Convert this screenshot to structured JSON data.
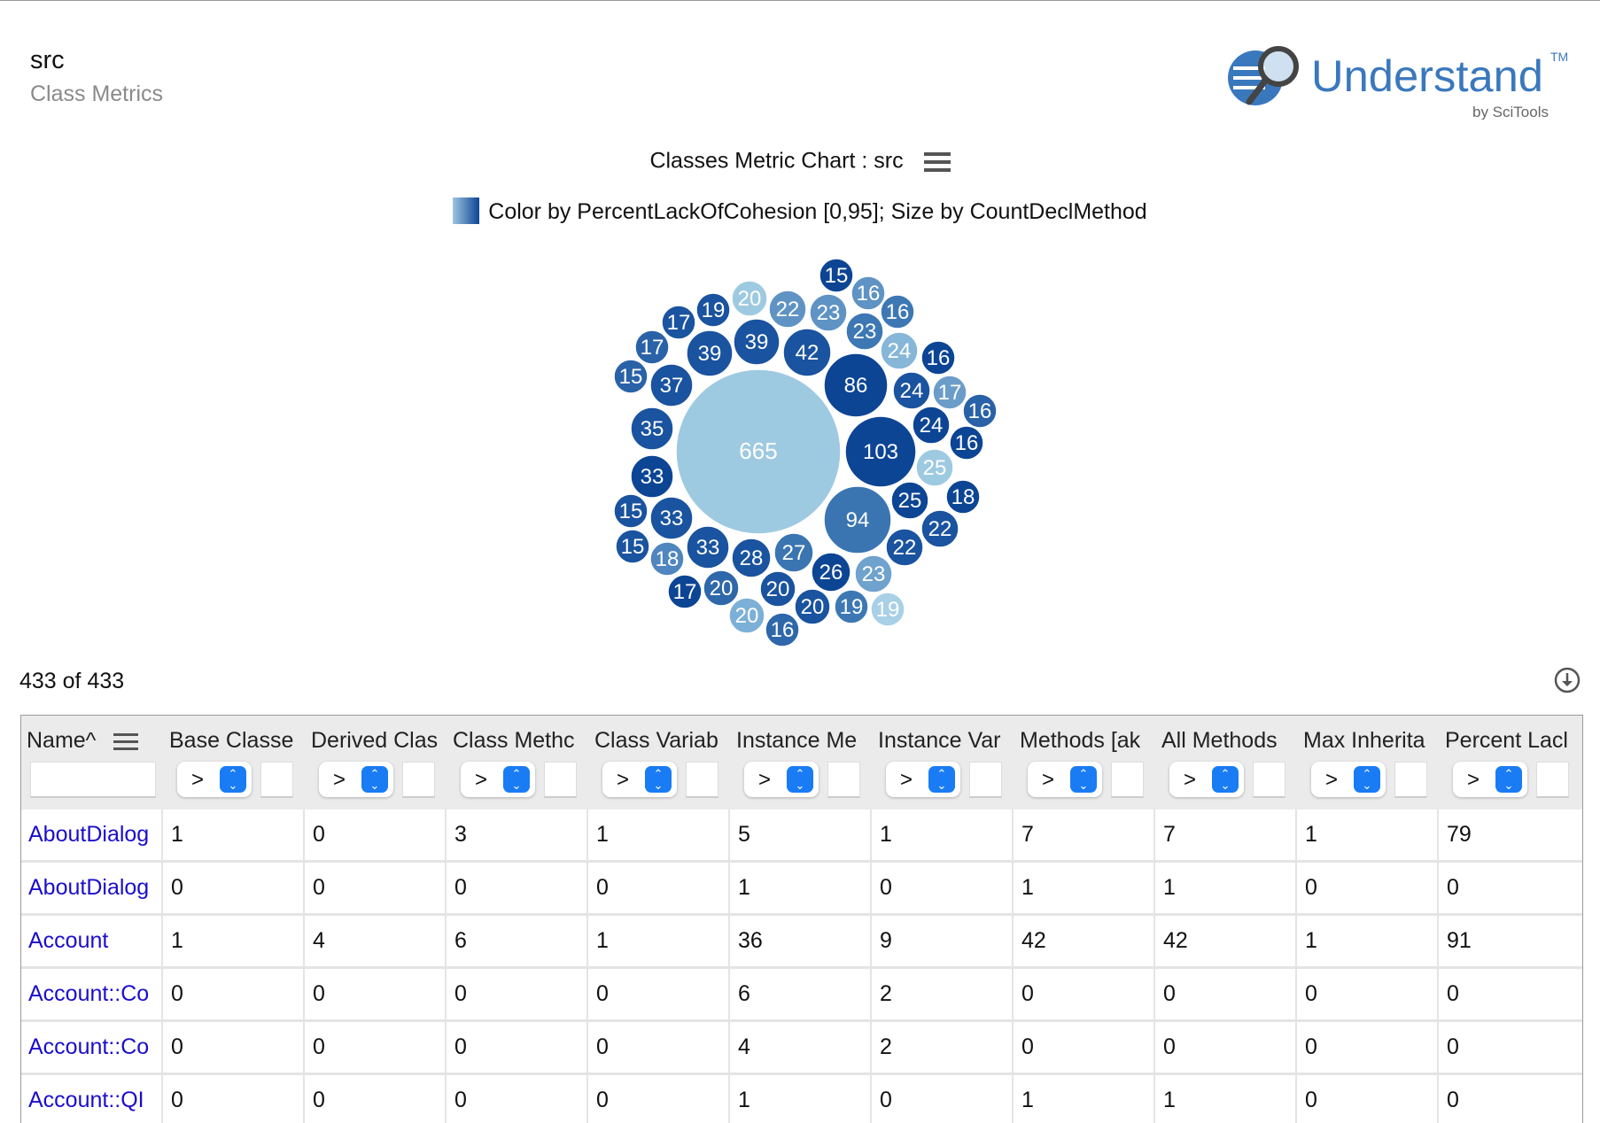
{
  "header": {
    "project": "src",
    "subtitle": "Class Metrics"
  },
  "logo": {
    "brand": "Understand",
    "tm": "TM",
    "byline": "by SciTools",
    "color": "#3a78bd"
  },
  "chart": {
    "title": "Classes Metric Chart : src",
    "menu_icon": "hamburger-menu-icon",
    "legend": "Color by PercentLackOfCohesion [0,95]; Size by CountDeclMethod"
  },
  "chart_data": {
    "type": "bubble",
    "title": "Classes Metric Chart : src",
    "color_metric": "PercentLackOfCohesion",
    "color_range": [
      0,
      95
    ],
    "size_metric": "CountDeclMethod",
    "values": [
      665,
      103,
      94,
      86,
      42,
      39,
      39,
      37,
      35,
      33,
      33,
      33,
      28,
      27,
      26,
      25,
      25,
      24,
      24,
      24,
      23,
      23,
      23,
      22,
      22,
      22,
      20,
      20,
      20,
      20,
      20,
      19,
      19,
      19,
      18,
      18,
      17,
      17,
      17,
      17,
      16,
      16,
      16,
      16,
      16,
      16,
      15,
      15,
      15,
      15
    ],
    "colors": [
      "#9ecae1",
      "#0d4595",
      "#3a75b2",
      "#0d4595",
      "#1a539f",
      "#1a539f",
      "#1a539f",
      "#1a539f",
      "#1a539f",
      "#0d4595",
      "#1a539f",
      "#1a539f",
      "#1a539f",
      "#3a75b2",
      "#0d4595",
      "#9ecae1",
      "#0d4595",
      "#1a539f",
      "#0d4595",
      "#86b6d8",
      "#5f93c4",
      "#3d78b4",
      "#6fa2cc",
      "#5f93c4",
      "#1a539f",
      "#1a539f",
      "#9ecae1",
      "#2f68aa",
      "#7db0d6",
      "#1a539f",
      "#1a539f",
      "#1a539f",
      "#3d78b4",
      "#a8d0e6",
      "#0d4595",
      "#4f86bf",
      "#1a539f",
      "#2a62a8",
      "#6c9dc9",
      "#0d4595",
      "#5f93c4",
      "#3d78b4",
      "#0d4595",
      "#2a62a8",
      "#0d4595",
      "#2f68aa",
      "#0d4595",
      "#2a62a8",
      "#1a539f",
      "#1a539f"
    ]
  },
  "table": {
    "count": "433 of 433",
    "download_icon": "download-icon",
    "columns": [
      "Name^",
      "Base Classe",
      "Derived Clas",
      "Class Methc",
      "Class Variab",
      "Instance Me",
      "Instance Var",
      "Methods [ak",
      "All Methods",
      "Max Inherita",
      "Percent Lacl"
    ],
    "filter_op": ">",
    "rows": [
      [
        "AboutDialog",
        "1",
        "0",
        "3",
        "1",
        "5",
        "1",
        "7",
        "7",
        "1",
        "79"
      ],
      [
        "AboutDialog",
        "0",
        "0",
        "0",
        "0",
        "1",
        "0",
        "1",
        "1",
        "0",
        "0"
      ],
      [
        "Account",
        "1",
        "4",
        "6",
        "1",
        "36",
        "9",
        "42",
        "42",
        "1",
        "91"
      ],
      [
        "Account::Co",
        "0",
        "0",
        "0",
        "0",
        "6",
        "2",
        "0",
        "0",
        "0",
        "0"
      ],
      [
        "Account::Co",
        "0",
        "0",
        "0",
        "0",
        "4",
        "2",
        "0",
        "0",
        "0",
        "0"
      ],
      [
        "Account::QI",
        "0",
        "0",
        "0",
        "0",
        "1",
        "0",
        "1",
        "1",
        "0",
        "0"
      ]
    ]
  }
}
